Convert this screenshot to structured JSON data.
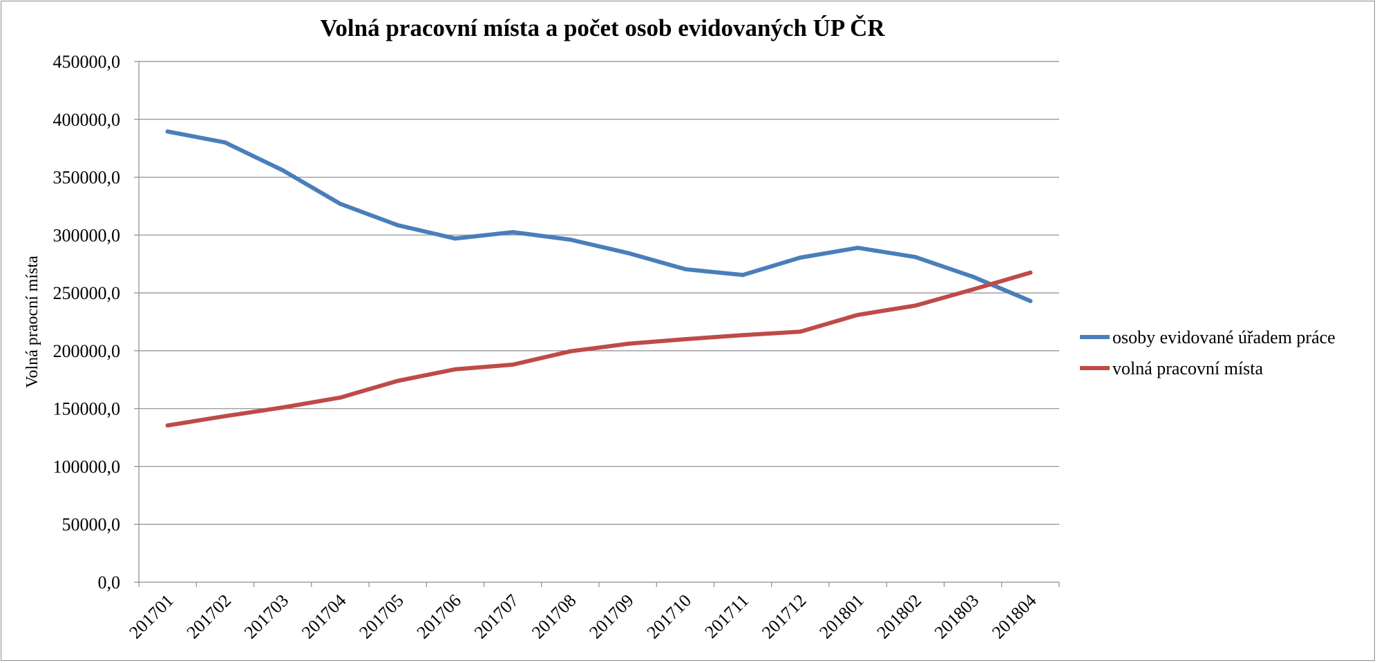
{
  "chart_data": {
    "type": "line",
    "title": "Volná pracovní místa a počet osob evidovaných ÚP ČR",
    "ylabel": "Volná praocní  místa",
    "xlabel": "",
    "ylim": [
      0,
      450000
    ],
    "yticks": [
      0,
      50000,
      100000,
      150000,
      200000,
      250000,
      300000,
      350000,
      400000,
      450000
    ],
    "ytick_labels": [
      "0,0",
      "50000,0",
      "100000,0",
      "150000,0",
      "200000,0",
      "250000,0",
      "300000,0",
      "350000,0",
      "400000,0",
      "450000,0"
    ],
    "grid": true,
    "legend_position": "right",
    "categories": [
      "201701",
      "201702",
      "201703",
      "201704",
      "201705",
      "201706",
      "201707",
      "201708",
      "201709",
      "201710",
      "201711",
      "201712",
      "201801",
      "201802",
      "201803",
      "201804"
    ],
    "series": [
      {
        "name": "osoby evidované úřadem práce",
        "color": "#4a7ebb",
        "values": [
          389500,
          380000,
          356000,
          327000,
          308500,
          297000,
          302500,
          296000,
          284500,
          270500,
          265500,
          280500,
          289000,
          281000,
          264000,
          243000
        ]
      },
      {
        "name": "volná pracovní místa",
        "color": "#be4b48",
        "values": [
          135500,
          143500,
          151000,
          159500,
          174000,
          184000,
          188000,
          199500,
          206000,
          210000,
          213500,
          216500,
          231000,
          239000,
          253000,
          267500
        ]
      }
    ]
  }
}
